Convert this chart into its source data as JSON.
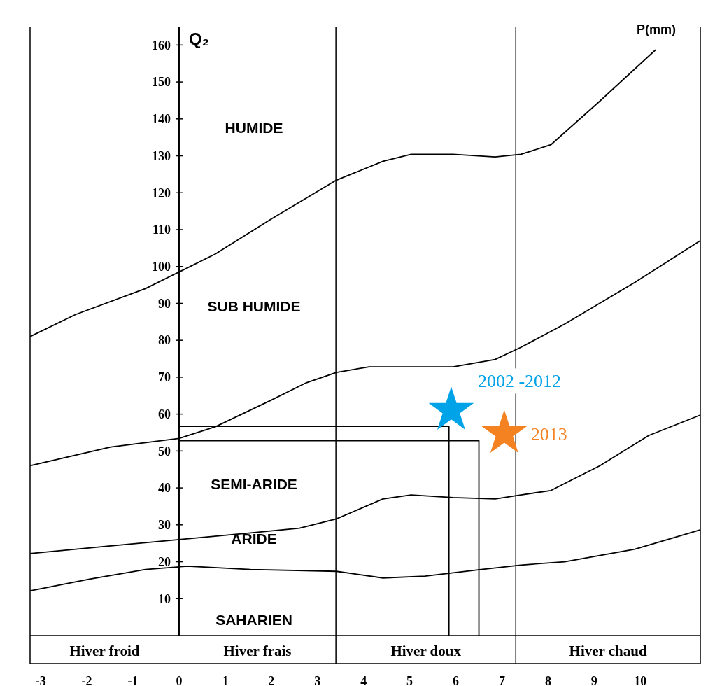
{
  "chart_data": {
    "type": "line",
    "ylabel": "Q₂",
    "xlim": [
      -3.23,
      11.3
    ],
    "ylim": [
      0,
      165
    ],
    "xticks": [
      -3,
      -2,
      -1,
      0,
      1,
      2,
      3,
      4,
      5,
      6,
      7,
      8,
      9,
      10
    ],
    "yticks": [
      10,
      20,
      30,
      40,
      50,
      60,
      70,
      80,
      90,
      100,
      110,
      120,
      130,
      140,
      150,
      160
    ],
    "annotations": [
      "P(mm)",
      "HUMIDE",
      "SUB HUMIDE",
      "SEMI-ARIDE",
      "ARIDE",
      "SAHARIEN",
      "Hiver froid",
      "Hiver frais",
      "Hiver doux",
      "Hiver chaud"
    ],
    "ref_lines": [
      {
        "axis": "x",
        "value": 3.4
      },
      {
        "axis": "x",
        "value": 7.3
      }
    ],
    "series": [
      {
        "color": "#000000",
        "marker": "none",
        "x": [
          -3.23,
          -2.24,
          -0.73,
          0,
          0.79,
          2,
          3.41,
          4.42,
          5.03,
          5.94,
          6.85,
          7.41,
          8.06,
          9.12,
          10.33
        ],
        "values": [
          81,
          87,
          94,
          98.5,
          103.4,
          112.9,
          123.4,
          128.5,
          130.4,
          130.4,
          129.7,
          130.4,
          133,
          144.8,
          158.7
        ]
      },
      {
        "type": "line",
        "color": "#000000",
        "marker": "none",
        "x": [
          -3.23,
          -1.48,
          0,
          0.79,
          2,
          2.76,
          3.41,
          4.12,
          5.94,
          6.85,
          7.41,
          8.36,
          9.88,
          11.29
        ],
        "values": [
          46,
          51.1,
          53.4,
          56.6,
          63.8,
          68.5,
          71.3,
          72.8,
          72.8,
          74.8,
          78.1,
          84.4,
          95.7,
          106.9
        ]
      },
      {
        "type": "line",
        "color": "#000000",
        "marker": "none",
        "x": [
          -3.23,
          -1.48,
          0,
          1.55,
          2.61,
          3.41,
          4.42,
          5.03,
          5.94,
          6.85,
          7.41,
          8.06,
          9.12,
          10.18,
          11.29
        ],
        "values": [
          22.2,
          24.3,
          26,
          27.8,
          29.1,
          31.6,
          37,
          38.1,
          37.4,
          37,
          38.1,
          39.3,
          46,
          54.2,
          59.7
        ]
      },
      {
        "type": "line",
        "color": "#000000",
        "marker": "none",
        "x": [
          -3.23,
          -1.94,
          -0.73,
          0.18,
          1.55,
          3.41,
          4.42,
          5.33,
          6.55,
          7.41,
          8.36,
          9.88,
          11.29
        ],
        "values": [
          12.1,
          15.3,
          17.9,
          18.8,
          17.9,
          17.4,
          15.6,
          16.1,
          17.9,
          19.1,
          20,
          23.4,
          28.6
        ]
      },
      {
        "type": "line",
        "color": "#000000",
        "marker": "none",
        "x": [
          0,
          5.85,
          5.85
        ],
        "values": [
          56.7,
          56.7,
          0
        ]
      },
      {
        "type": "line",
        "color": "#000000",
        "marker": "none",
        "x": [
          0,
          6.5,
          6.5
        ],
        "values": [
          52.8,
          52.8,
          0
        ]
      },
      {
        "type": "scatter",
        "name": "2002 -2012",
        "color": "#00a2e8",
        "marker": "star",
        "x": [
          5.9
        ],
        "values": [
          61
        ]
      },
      {
        "type": "scatter",
        "name": "2013",
        "color": "#f58220",
        "marker": "star",
        "x": [
          7.05
        ],
        "values": [
          54.7
        ]
      }
    ]
  }
}
